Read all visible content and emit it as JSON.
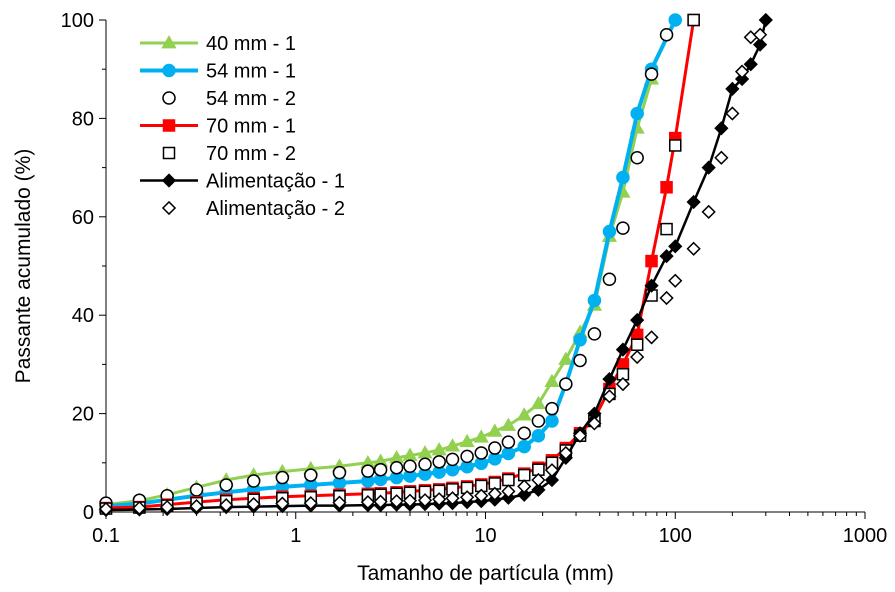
{
  "chart_data": {
    "type": "line",
    "xlabel": "Tamanho de partícula (mm)",
    "ylabel": "Passante acumulado (%)",
    "x_scale": "log",
    "xlim": [
      0.1,
      1000
    ],
    "ylim": [
      0,
      100
    ],
    "x_ticks": [
      0.1,
      1,
      10,
      100,
      1000
    ],
    "x_tick_labels": [
      "0.1",
      "1",
      "10",
      "100",
      "1000"
    ],
    "y_ticks": [
      0,
      20,
      40,
      60,
      80,
      100
    ],
    "y_tick_labels": [
      "0",
      "20",
      "40",
      "60",
      "80",
      "100"
    ],
    "grid": false,
    "legend_position": "top-left",
    "series": [
      {
        "name": "40 mm - 1",
        "color": "#92d050",
        "marker": "triangle",
        "filled": true,
        "line": true,
        "x": [
          0.1,
          0.15,
          0.21,
          0.3,
          0.43,
          0.6,
          0.85,
          1.2,
          1.7,
          2.4,
          2.8,
          3.4,
          4,
          4.8,
          5.7,
          6.7,
          8,
          9.5,
          11.2,
          13.2,
          16,
          19,
          22.4,
          26.5,
          31.5,
          37.5,
          45,
          53,
          63,
          75
        ],
        "y": [
          1.5,
          2.3,
          3.5,
          5,
          6.5,
          7.5,
          8.2,
          8.8,
          9.3,
          10,
          10.3,
          11,
          11.5,
          12,
          12.6,
          13.4,
          14.3,
          15.2,
          16.4,
          17.6,
          19.7,
          22,
          26.5,
          31,
          36.5,
          42,
          56,
          65,
          78,
          88
        ]
      },
      {
        "name": "54 mm - 1",
        "color": "#00b0f0",
        "marker": "circle",
        "filled": true,
        "line": true,
        "x": [
          0.1,
          0.15,
          0.21,
          0.3,
          0.43,
          0.6,
          0.85,
          1.2,
          1.7,
          2.4,
          2.8,
          3.4,
          4,
          4.8,
          5.7,
          6.7,
          8,
          9.5,
          11.2,
          13.2,
          16,
          19,
          22.4,
          26.5,
          31.5,
          37.5,
          45,
          53,
          63,
          75,
          100
        ],
        "y": [
          1.2,
          1.7,
          2.5,
          3.3,
          4,
          4.6,
          5.1,
          5.5,
          5.9,
          6.3,
          6.6,
          7,
          7.3,
          7.7,
          8.1,
          8.6,
          9.2,
          9.9,
          10.8,
          11.9,
          13.3,
          15.5,
          18.5,
          26,
          35,
          43,
          57,
          68,
          81,
          90,
          100
        ]
      },
      {
        "name": "54 mm - 2",
        "color": "#000000",
        "marker": "circle",
        "filled": false,
        "line": false,
        "x": [
          0.1,
          0.15,
          0.21,
          0.3,
          0.43,
          0.6,
          0.85,
          1.2,
          1.7,
          2.4,
          2.8,
          3.4,
          4,
          4.8,
          5.7,
          6.7,
          8,
          9.5,
          11.2,
          13.2,
          16,
          19,
          22.4,
          26.5,
          31.5,
          37.5,
          45,
          53,
          63,
          75,
          90
        ],
        "y": [
          1.8,
          2.4,
          3.3,
          4.5,
          5.5,
          6.3,
          7,
          7.5,
          8,
          8.3,
          8.6,
          9,
          9.3,
          9.7,
          10.2,
          10.7,
          11.3,
          12,
          13,
          14.2,
          16,
          18.5,
          21,
          26,
          30.8,
          36.2,
          47.3,
          57.7,
          72,
          89,
          97
        ]
      },
      {
        "name": "70 mm - 1",
        "color": "#ff0000",
        "marker": "square",
        "filled": true,
        "line": true,
        "x": [
          0.1,
          0.15,
          0.21,
          0.3,
          0.43,
          0.6,
          0.85,
          1.2,
          1.7,
          2.4,
          2.8,
          3.4,
          4,
          4.8,
          5.7,
          6.7,
          8,
          9.5,
          11.2,
          13.2,
          16,
          19,
          22.4,
          26.5,
          31.5,
          37.5,
          45,
          53,
          63,
          75,
          90,
          100,
          125
        ],
        "y": [
          0.8,
          1,
          1.5,
          2,
          2.5,
          2.8,
          3.1,
          3.3,
          3.5,
          3.7,
          3.8,
          4,
          4.2,
          4.4,
          4.6,
          4.9,
          5.2,
          5.6,
          6.1,
          6.8,
          7.8,
          9,
          10.5,
          13,
          16,
          19,
          25,
          30,
          36,
          51,
          66,
          76,
          100
        ]
      },
      {
        "name": "70 mm - 2",
        "color": "#000000",
        "marker": "square",
        "filled": false,
        "line": false,
        "x": [
          0.1,
          0.15,
          0.21,
          0.3,
          0.43,
          0.6,
          0.85,
          1.2,
          1.7,
          2.4,
          2.8,
          3.4,
          4,
          4.8,
          5.7,
          6.7,
          8,
          9.5,
          11.2,
          13.2,
          16,
          19,
          22.4,
          26.5,
          31.5,
          37.5,
          45,
          53,
          63,
          75,
          90,
          100,
          125
        ],
        "y": [
          0.7,
          0.9,
          1.3,
          1.8,
          2.2,
          2.5,
          2.8,
          3,
          3.2,
          3.4,
          3.5,
          3.7,
          3.9,
          4.1,
          4.3,
          4.6,
          4.9,
          5.3,
          5.8,
          6.5,
          7.5,
          8.6,
          10,
          12.5,
          15.5,
          18.5,
          24,
          28,
          34,
          44,
          57.5,
          74.5,
          100
        ]
      },
      {
        "name": "Alimentação - 1",
        "color": "#000000",
        "marker": "diamond",
        "filled": true,
        "line": true,
        "x": [
          0.1,
          0.15,
          0.21,
          0.3,
          0.43,
          0.6,
          0.85,
          1.2,
          1.7,
          2.4,
          2.8,
          3.4,
          4,
          4.8,
          5.7,
          6.7,
          8,
          9.5,
          11.2,
          13.2,
          16,
          19,
          22.4,
          26.5,
          31.5,
          37.5,
          45,
          53,
          63,
          75,
          90,
          100,
          125,
          150,
          175,
          200,
          225,
          250,
          280,
          300
        ],
        "y": [
          0.4,
          0.5,
          0.6,
          0.8,
          1,
          1.1,
          1.2,
          1.3,
          1.3,
          1.4,
          1.4,
          1.5,
          1.5,
          1.6,
          1.7,
          1.8,
          2,
          2.2,
          2.5,
          2.9,
          3.5,
          4.5,
          6.5,
          11,
          16,
          20,
          27,
          33,
          39,
          46,
          52,
          54,
          63,
          70,
          78,
          86,
          88,
          91,
          95,
          100
        ]
      },
      {
        "name": "Alimentação - 2",
        "color": "#000000",
        "marker": "diamond",
        "filled": false,
        "line": false,
        "x": [
          0.1,
          0.15,
          0.21,
          0.3,
          0.43,
          0.6,
          0.85,
          1.2,
          1.7,
          2.4,
          2.8,
          3.4,
          4,
          4.8,
          5.7,
          6.7,
          8,
          9.5,
          11.2,
          13.2,
          16,
          19,
          22.4,
          26.5,
          31.5,
          37.5,
          45,
          53,
          63,
          75,
          90,
          100,
          125,
          150,
          175,
          200,
          225,
          250,
          280
        ],
        "y": [
          0.6,
          0.8,
          1,
          1.2,
          1.4,
          1.6,
          1.7,
          1.8,
          1.9,
          2,
          2.1,
          2.2,
          2.3,
          2.4,
          2.6,
          2.8,
          3,
          3.3,
          3.7,
          4.2,
          5.2,
          6.5,
          8.5,
          12,
          15.5,
          18,
          23.5,
          26,
          31.5,
          35.5,
          43.5,
          47,
          53.5,
          61,
          72,
          81,
          89.5,
          96.5,
          97
        ]
      }
    ]
  }
}
